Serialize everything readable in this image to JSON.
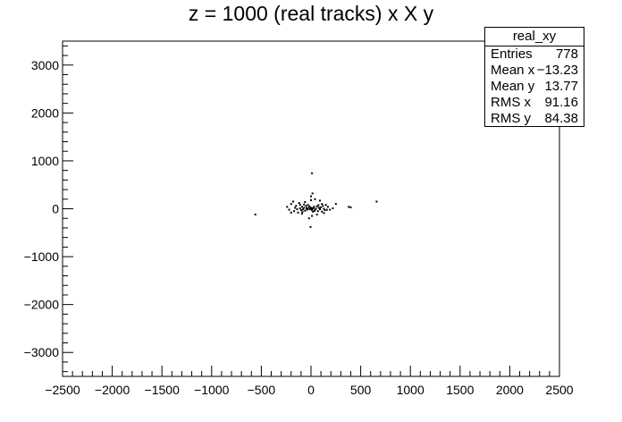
{
  "chart_data": {
    "type": "scatter",
    "title": "z = 1000 (real tracks) x X y",
    "xlim": [
      -2500,
      2500
    ],
    "ylim": [
      -3500,
      3500
    ],
    "x_ticks": [
      "−2500",
      "−2000",
      "−1500",
      "−1000",
      "−500",
      "0",
      "500",
      "1000",
      "1500",
      "2000",
      "2500"
    ],
    "y_ticks": [
      "3000",
      "2000",
      "1000",
      "0",
      "−1000",
      "−2000",
      "−3000"
    ],
    "grid": false,
    "stats_box": {
      "name": "real_xy",
      "rows": [
        {
          "label": "Entries",
          "value": "778"
        },
        {
          "label": "Mean x",
          "value": "−13.23"
        },
        {
          "label": "Mean y",
          "value": "13.77"
        },
        {
          "label": "RMS x",
          "value": "91.16"
        },
        {
          "label": "RMS y",
          "value": "84.38"
        }
      ]
    },
    "points": [
      [
        -560,
        -120
      ],
      [
        -220,
        -20
      ],
      [
        -240,
        40
      ],
      [
        -200,
        100
      ],
      [
        -180,
        150
      ],
      [
        -150,
        60
      ],
      [
        -130,
        -80
      ],
      [
        -110,
        10
      ],
      [
        -100,
        -30
      ],
      [
        -90,
        40
      ],
      [
        -80,
        -10
      ],
      [
        -70,
        20
      ],
      [
        -60,
        -40
      ],
      [
        -50,
        60
      ],
      [
        -40,
        -20
      ],
      [
        -30,
        0
      ],
      [
        -20,
        30
      ],
      [
        -10,
        -10
      ],
      [
        0,
        20
      ],
      [
        10,
        -30
      ],
      [
        20,
        10
      ],
      [
        30,
        40
      ],
      [
        40,
        -20
      ],
      [
        50,
        0
      ],
      [
        60,
        50
      ],
      [
        70,
        -50
      ],
      [
        80,
        20
      ],
      [
        90,
        -10
      ],
      [
        100,
        30
      ],
      [
        110,
        -60
      ],
      [
        120,
        60
      ],
      [
        130,
        0
      ],
      [
        140,
        -30
      ],
      [
        150,
        80
      ],
      [
        -170,
        -50
      ],
      [
        -120,
        120
      ],
      [
        -60,
        140
      ],
      [
        0,
        180
      ],
      [
        40,
        200
      ],
      [
        90,
        170
      ],
      [
        -20,
        -200
      ],
      [
        10,
        -150
      ],
      [
        -5,
        -380
      ],
      [
        0,
        260
      ],
      [
        15,
        320
      ],
      [
        10,
        740
      ],
      [
        -90,
        -100
      ],
      [
        60,
        -120
      ],
      [
        -140,
        -10
      ],
      [
        170,
        40
      ],
      [
        190,
        -20
      ],
      [
        220,
        10
      ],
      [
        250,
        100
      ],
      [
        -30,
        80
      ],
      [
        20,
        -60
      ],
      [
        -70,
        90
      ],
      [
        110,
        100
      ],
      [
        -200,
        -80
      ],
      [
        380,
        40
      ],
      [
        400,
        30
      ],
      [
        660,
        150
      ],
      [
        -15,
        50
      ],
      [
        5,
        -5
      ],
      [
        25,
        25
      ],
      [
        -45,
        15
      ],
      [
        35,
        -45
      ],
      [
        -85,
        -60
      ],
      [
        75,
        75
      ],
      [
        -110,
        80
      ],
      [
        130,
        -90
      ],
      [
        -160,
        20
      ],
      [
        160,
        -20
      ]
    ]
  }
}
